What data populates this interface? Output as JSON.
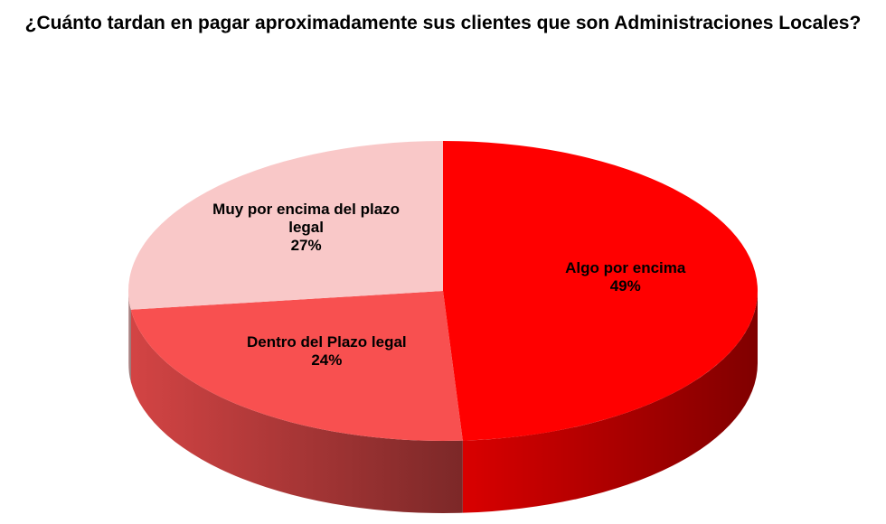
{
  "chart_data": {
    "type": "pie",
    "title": "¿Cuánto tardan en pagar aproximadamente sus clientes que son Administraciones Locales?",
    "categories": [
      "Algo por encima",
      "Dentro del Plazo legal",
      "Muy por encima del plazo legal"
    ],
    "values": [
      49,
      24,
      27
    ],
    "value_labels": [
      "49%",
      "24%",
      "27%"
    ],
    "colors": [
      "#ff0000",
      "#f85050",
      "#f9c8c8"
    ]
  }
}
